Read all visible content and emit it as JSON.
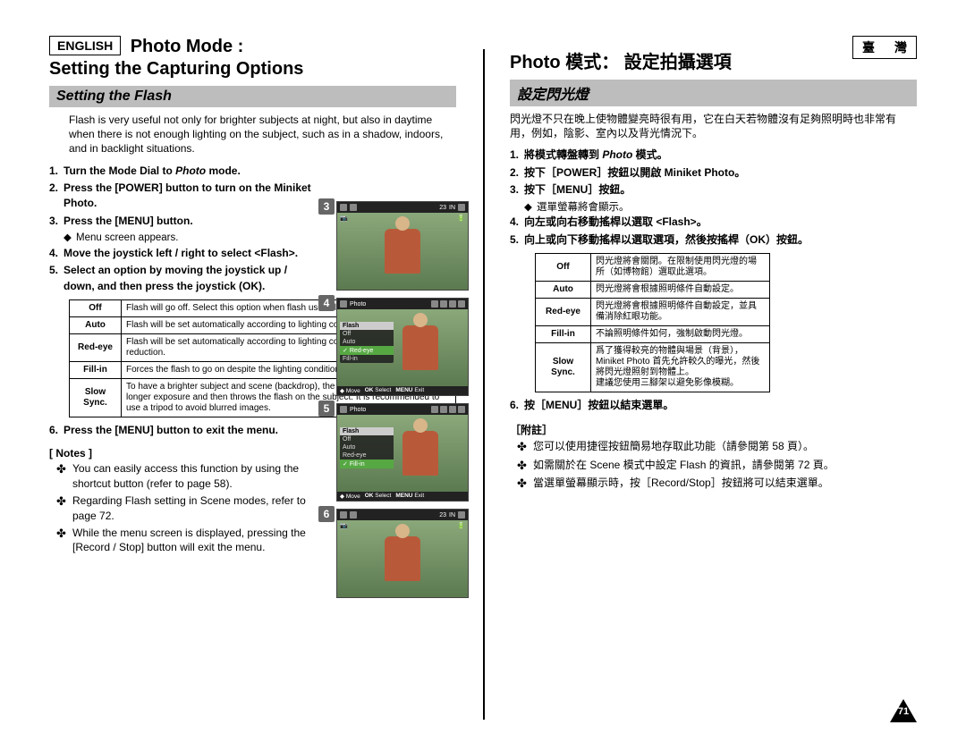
{
  "page_number": "71",
  "left": {
    "lang_label": "ENGLISH",
    "title_line1": "Photo Mode :",
    "title_line2": "Setting the Capturing Options",
    "subhead": "Setting the Flash",
    "intro": "Flash is very useful not only for brighter subjects at night, but also in daytime when there is not enough lighting on the subject, such as in a shadow, indoors, and in backlight situations.",
    "steps": [
      {
        "n": "1.",
        "html": "<b>Turn the Mode Dial to <em>Photo</em> mode.</b>"
      },
      {
        "n": "2.",
        "html": "<b>Press the [POWER] button to turn on the Miniket Photo.</b>"
      },
      {
        "n": "3.",
        "html": "<b>Press the [MENU] button.</b>",
        "sub": "Menu screen appears."
      },
      {
        "n": "4.",
        "html": "<b>Move the joystick left / right to select &lt;Flash&gt;.</b>"
      },
      {
        "n": "5.",
        "html": "<b>Select an option by moving the joystick up / down, and then press the joystick (OK).</b>"
      }
    ],
    "table": [
      [
        "Off",
        "Flash will go off. Select this option when flash use is limited such as in a museum."
      ],
      [
        "Auto",
        "Flash will be set automatically according to lighting conditions."
      ],
      [
        "Red-eye",
        "Flash will be set automatically according to lighting conditions, with red-eye reduction."
      ],
      [
        "Fill-in",
        "Forces the flash to go on despite the lighting conditions."
      ],
      [
        "Slow Sync.",
        "To have a brighter subject and scene (backdrop), the Miniket Photo will first allow longer exposure and then throws the flash on the subject. It is recommended to use a tripod to avoid blurred images."
      ]
    ],
    "exit_step": {
      "n": "6.",
      "html": "<b>Press the [MENU] button to exit the menu.</b>"
    },
    "notes_label": "[ Notes ]",
    "notes": [
      "You can easily access this function by using the shortcut button (refer to page 58).",
      "Regarding Flash setting in Scene modes, refer to page 72.",
      "While the menu screen is displayed, pressing the [Record / Stop] button will exit the menu."
    ]
  },
  "right": {
    "lang_label": "臺　灣",
    "title": "Photo 模式： 設定拍攝選項",
    "subhead": "設定閃光燈",
    "intro": "閃光燈不只在晚上使物體變亮時很有用，它在白天若物體沒有足夠照明時也非常有用，例如，陰影、室內以及背光情況下。",
    "steps": [
      {
        "n": "1.",
        "html": "<b>將模式轉盤轉到 <em>Photo</em> 模式。</b>"
      },
      {
        "n": "2.",
        "html": "<b>按下［POWER］按鈕以開啟 Miniket Photo。</b>"
      },
      {
        "n": "3.",
        "html": "<b>按下［MENU］按鈕。</b>",
        "sub": "選單螢幕將會顯示。"
      },
      {
        "n": "4.",
        "html": "<b>向左或向右移動搖桿以選取 &lt;Flash&gt;。</b>"
      },
      {
        "n": "5.",
        "html": "<b>向上或向下移動搖桿以選取選項，然後按搖桿（OK）按鈕。</b>"
      }
    ],
    "table": [
      [
        "Off",
        "閃光燈將會關閉。在限制使用閃光燈的場所（如博物館）選取此選項。"
      ],
      [
        "Auto",
        "閃光燈將會根據照明條件自動設定。"
      ],
      [
        "Red-eye",
        "閃光燈將會根據照明條件自動設定，並具備消除紅眼功能。"
      ],
      [
        "Fill-in",
        "不論照明條件如何，強制啟動閃光燈。"
      ],
      [
        "Slow Sync.",
        "爲了獲得較亮的物體與場景（背景），Miniket Photo 首先允許較久的曝光，然後將閃光燈照射到物體上。\n建議您使用三腳架以避免影像模糊。"
      ]
    ],
    "exit_step": {
      "n": "6.",
      "html": "<b>按［MENU］按鈕以結束選單。</b>"
    },
    "notes_label": "［附註］",
    "notes": [
      "您可以使用捷徑按鈕簡易地存取此功能（請參閱第 58 頁）。",
      "如需關於在 Scene 模式中設定 Flash 的資訊，請參閱第 72 頁。",
      "當選單螢幕顯示時，按［Record/Stop］按鈕將可以結束選單。"
    ]
  },
  "shots": {
    "nums": [
      "3",
      "4",
      "5",
      "6"
    ],
    "count": "23",
    "menu_hdr": "Flash",
    "menu4": [
      "Off",
      "Auto",
      "Red-eye",
      "Fill-in"
    ],
    "sel4": 2,
    "sel5": 3,
    "bot": {
      "move": "Move",
      "ok": "OK",
      "sel": "Select",
      "menu": "MENU",
      "exit": "Exit"
    },
    "photo_label": "Photo",
    "in": "IN"
  },
  "colors": {
    "bg": "#ffffff",
    "band": "#bdbdbd",
    "text": "#000000",
    "badge": "#666666",
    "lcd_bg": "#6a8a5a",
    "menu_sel": "#56a843"
  }
}
